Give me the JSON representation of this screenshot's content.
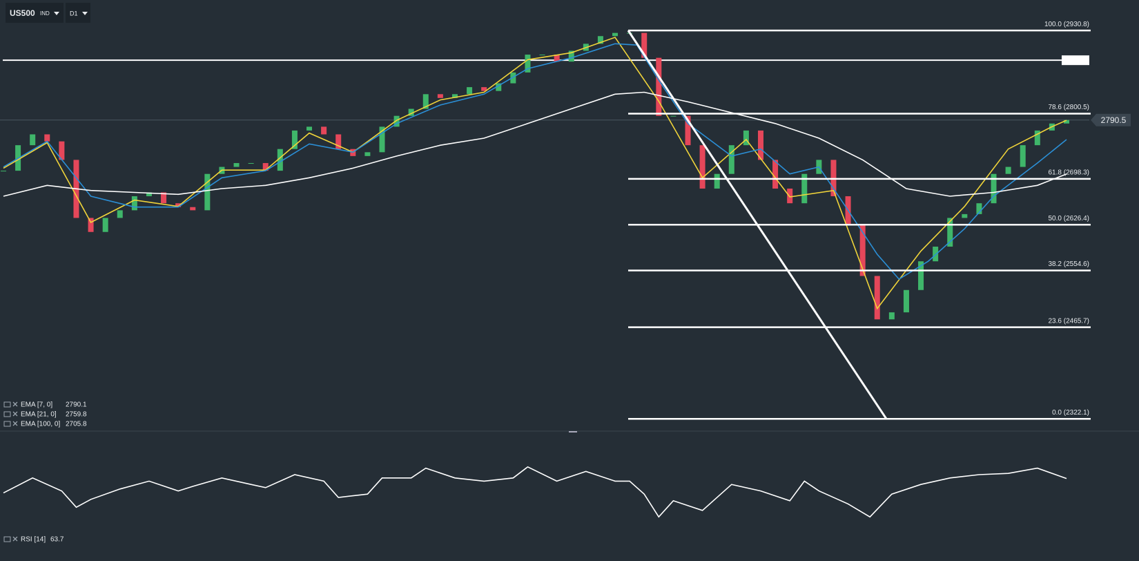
{
  "header": {
    "symbol": "US500",
    "market": "IND",
    "timeframe": "D1"
  },
  "chart_data": [
    {
      "type": "candlestick",
      "xlim": [
        0,
        73
      ],
      "ylim": [
        2305,
        2978.6
      ],
      "up_color": "#3fb66a",
      "down_color": "#e5475a",
      "values": [
        2711,
        2751,
        2768,
        2757,
        2728,
        2637,
        2615,
        2637,
        2649,
        2671,
        2677,
        2660,
        2654,
        2649,
        2706,
        2717,
        2723,
        2723,
        2711,
        2745,
        2774,
        2780,
        2768,
        2745,
        2734,
        2740,
        2780,
        2797,
        2808,
        2831,
        2825,
        2831,
        2842,
        2836,
        2848,
        2865,
        2893,
        2893,
        2882,
        2899,
        2910,
        2922,
        2927,
        2927,
        2888,
        2797,
        2797,
        2751,
        2683,
        2706,
        2751,
        2774,
        2728,
        2683,
        2660,
        2706,
        2728,
        2671,
        2626,
        2546,
        2478,
        2489,
        2524,
        2569,
        2592,
        2637,
        2643,
        2660,
        2706,
        2717,
        2751,
        2774,
        2785,
        2790.5
      ],
      "last_price": 2790.5,
      "hline": 2884.2,
      "fib_levels": [
        {
          "value": 2930.8,
          "label": "100.0 (2930.8)"
        },
        {
          "value": 2800.5,
          "label": "78.6 (2800.5)"
        },
        {
          "value": 2698.3,
          "label": "61.8 (2698.3)"
        },
        {
          "value": 2626.4,
          "label": "50.0 (2626.4)"
        },
        {
          "value": 2554.6,
          "label": "38.2 (2554.6)"
        },
        {
          "value": 2465.7,
          "label": "23.6 (2465.7)"
        },
        {
          "value": 2322.1,
          "label": "0.0 (2322.1)"
        }
      ],
      "series": [
        {
          "name": "EMA  [7,  0]",
          "color": "#f0d43a",
          "x": [
            0,
            3,
            6,
            9,
            12,
            15,
            18,
            21,
            24,
            27,
            30,
            33,
            36,
            39,
            42,
            45,
            48,
            51,
            54,
            57,
            60,
            63,
            66,
            69,
            72,
            73
          ],
          "values": [
            2715,
            2755,
            2630,
            2665,
            2655,
            2712,
            2712,
            2770,
            2740,
            2790,
            2822,
            2834,
            2885,
            2896,
            2920,
            2820,
            2700,
            2760,
            2670,
            2680,
            2495,
            2585,
            2655,
            2745,
            2780,
            2790.1
          ]
        },
        {
          "name": "EMA  [21,  0]",
          "color": "#2b8fd6",
          "x": [
            0,
            3,
            6,
            9,
            12,
            15,
            18,
            21,
            24,
            27,
            30,
            33,
            36,
            39,
            42,
            43.5,
            45,
            47,
            50,
            52,
            54,
            56,
            58,
            60,
            61.5,
            63.5,
            66,
            68,
            71,
            73
          ],
          "values": [
            2717,
            2757,
            2671,
            2654,
            2654,
            2700,
            2711,
            2753,
            2740,
            2785,
            2814,
            2831,
            2871,
            2888,
            2910,
            2908,
            2853,
            2785,
            2734,
            2745,
            2706,
            2717,
            2649,
            2580,
            2541,
            2569,
            2620,
            2671,
            2723,
            2759.8
          ]
        },
        {
          "name": "EMA  [100,  0]",
          "color": "#ffffff",
          "x": [
            0,
            3,
            6,
            9,
            12,
            15,
            18,
            21,
            24,
            27,
            30,
            33,
            36,
            39,
            42,
            44,
            47,
            50,
            53,
            56,
            59,
            62,
            65,
            68,
            71,
            73
          ],
          "values": [
            2671,
            2688,
            2680,
            2677,
            2674,
            2683,
            2688,
            2700,
            2715,
            2734,
            2751,
            2762,
            2785,
            2808,
            2831,
            2834,
            2819,
            2802,
            2785,
            2762,
            2728,
            2683,
            2671,
            2677,
            2688,
            2705.8
          ]
        }
      ]
    },
    {
      "type": "line",
      "name": "RSI  [14]",
      "color": "#ffffff",
      "xlim": [
        0,
        73
      ],
      "ylim": [
        10,
        90
      ],
      "x": [
        0,
        2,
        4,
        5,
        6,
        8,
        10,
        12,
        13,
        15,
        17,
        18,
        20,
        22,
        23,
        25,
        26,
        28,
        29,
        31,
        33,
        35,
        36,
        38,
        40,
        42,
        43,
        44,
        45,
        46,
        48,
        50,
        52,
        54,
        55,
        56,
        58,
        59.5,
        61,
        63,
        65,
        67,
        69,
        71,
        73
      ],
      "values": [
        53.3,
        64.1,
        54.7,
        42.9,
        48.6,
        56.1,
        61.8,
        54.7,
        58.0,
        64.1,
        59.4,
        57.1,
        66.5,
        61.8,
        50.0,
        52.4,
        64.1,
        64.1,
        71.2,
        64.1,
        61.8,
        64.1,
        72.1,
        61.8,
        68.8,
        61.8,
        61.8,
        52.4,
        35.9,
        47.6,
        40.6,
        59.4,
        54.7,
        47.6,
        61.8,
        54.7,
        45.3,
        35.9,
        52.4,
        59.4,
        64.1,
        66.5,
        67.4,
        71.2,
        63.7
      ]
    }
  ]
}
